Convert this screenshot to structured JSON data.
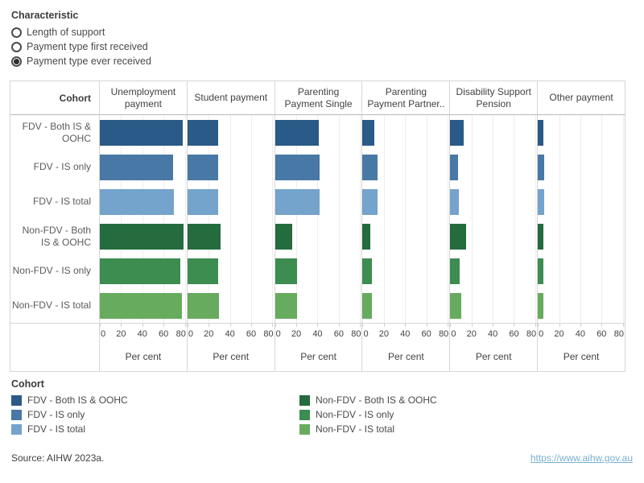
{
  "controls": {
    "title": "Characteristic",
    "options": [
      {
        "label": "Length of support",
        "selected": false
      },
      {
        "label": "Payment type first received",
        "selected": false
      },
      {
        "label": "Payment type ever received",
        "selected": true
      }
    ]
  },
  "chart_data": {
    "type": "bar",
    "orientation": "horizontal",
    "corner_header": "Cohort",
    "columns": [
      "Unemployment payment",
      "Student payment",
      "Parenting Payment Single",
      "Parenting Payment Partner..",
      "Disability Support Pension",
      "Other payment"
    ],
    "rows": [
      {
        "label": "FDV - Both IS & OOHC",
        "color": "#2a5a87",
        "values": [
          78,
          29,
          41,
          11,
          13,
          5
        ]
      },
      {
        "label": "FDV - IS only",
        "color": "#4878a5",
        "values": [
          69,
          29,
          42,
          14,
          7,
          6
        ]
      },
      {
        "label": "FDV - IS total",
        "color": "#74a3cb",
        "values": [
          70,
          29,
          42,
          14,
          8,
          6
        ]
      },
      {
        "label": "Non-FDV - Both IS & OOHC",
        "color": "#246b3d",
        "values": [
          79,
          31,
          16,
          7,
          15,
          5
        ]
      },
      {
        "label": "Non-FDV - IS only",
        "color": "#3d8c50",
        "values": [
          76,
          29,
          21,
          9,
          9,
          5
        ]
      },
      {
        "label": "Non-FDV - IS total",
        "color": "#67ab5e",
        "values": [
          77,
          30,
          21,
          9,
          10,
          5
        ]
      }
    ],
    "x_axis": {
      "ticks": [
        0,
        20,
        40,
        60,
        80
      ],
      "label": "Per cent",
      "xlim": [
        0,
        82
      ]
    },
    "grid": true,
    "legend_position": "bottom"
  },
  "legend": {
    "title": "Cohort",
    "items": [
      {
        "label": "FDV - Both IS & OOHC",
        "color": "#2a5a87"
      },
      {
        "label": "FDV - IS only",
        "color": "#4878a5"
      },
      {
        "label": "FDV - IS total",
        "color": "#74a3cb"
      },
      {
        "label": "Non-FDV - Both IS & OOHC",
        "color": "#246b3d"
      },
      {
        "label": "Non-FDV - IS only",
        "color": "#3d8c50"
      },
      {
        "label": "Non-FDV - IS total",
        "color": "#67ab5e"
      }
    ]
  },
  "footer": {
    "source": "Source: AIHW 2023a.",
    "link": "https://www.aihw.gov.au"
  }
}
